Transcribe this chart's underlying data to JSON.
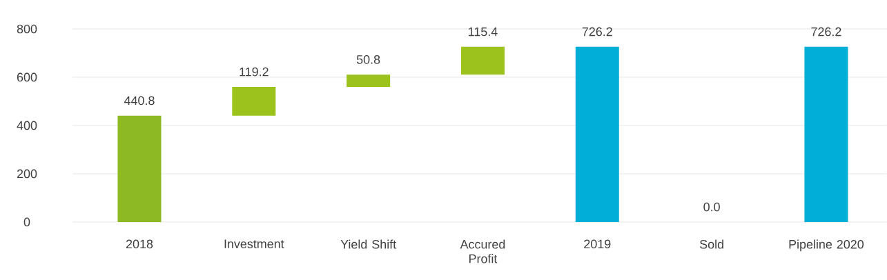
{
  "chart_data": {
    "type": "bar",
    "categories": [
      "2018",
      "Investment",
      "Yield Shift",
      "Accured Profit",
      "2019",
      "Sold",
      "Pipeline 2020"
    ],
    "values": [
      440.8,
      119.2,
      50.8,
      115.4,
      726.2,
      0.0,
      726.2
    ],
    "base": [
      0,
      440.8,
      560.0,
      610.8,
      0,
      null,
      0
    ],
    "colors": [
      "#8dba22",
      "#9bc31c",
      "#9bc31c",
      "#9bc31c",
      "#00aed6",
      "#00aed6",
      "#00aed6"
    ],
    "value_labels": [
      "440.8",
      "119.2",
      "50.8",
      "115.4",
      "726.2",
      "0.0",
      "726.2"
    ],
    "ylim": [
      0,
      800
    ],
    "yticks": [
      0,
      200,
      400,
      600,
      800
    ],
    "grid": "y"
  }
}
